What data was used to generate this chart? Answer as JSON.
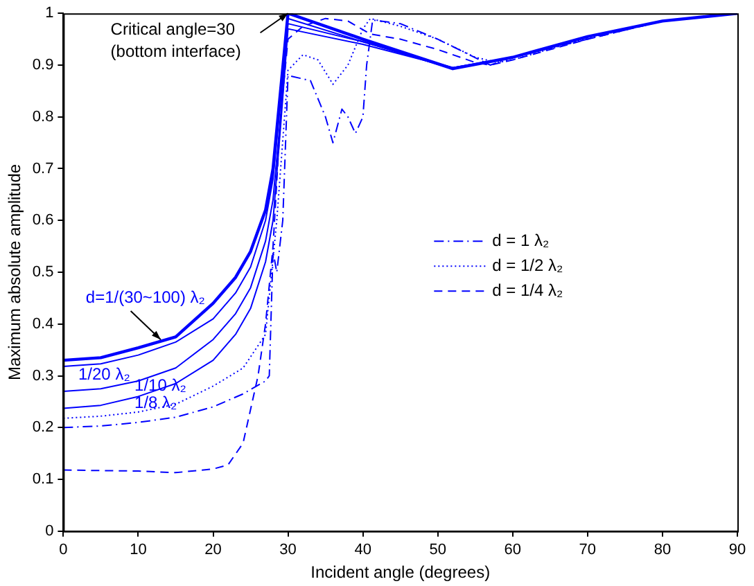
{
  "chart_data": {
    "type": "line",
    "xlabel": "Incident angle (degrees)",
    "ylabel": "Maximum absolute amplitude",
    "xlim": [
      0,
      90
    ],
    "xticks": [
      0,
      10,
      20,
      30,
      40,
      50,
      60,
      70,
      80,
      90
    ],
    "ylim": [
      0,
      1
    ],
    "yticks": [
      0,
      0.1,
      0.2,
      0.3,
      0.4,
      0.5,
      0.6,
      0.7,
      0.8,
      0.9,
      1
    ],
    "grid": false,
    "legend": "right",
    "marker": "none",
    "annotations": [
      {
        "text": "Critical angle=30\n(bottom interface)",
        "x": 30,
        "y": 1
      }
    ],
    "series": [
      {
        "name": "d=1/(30~100) λ₂",
        "color": "#0000ff",
        "line_style": "solid",
        "x": [
          0,
          5,
          10,
          15,
          20,
          23,
          25,
          27,
          28,
          29,
          30,
          40,
          52,
          60,
          70,
          80,
          90
        ],
        "values": [
          0.33,
          0.335,
          0.354,
          0.375,
          0.44,
          0.49,
          0.54,
          0.62,
          0.7,
          0.85,
          1.0,
          0.95,
          0.893,
          0.915,
          0.955,
          0.985,
          1.0
        ]
      },
      {
        "name": "1/20 λ₂",
        "color": "#0000ff",
        "line_style": "solid",
        "x": [
          0,
          5,
          10,
          15,
          20,
          23,
          25,
          27,
          28,
          29,
          30,
          40,
          52,
          60,
          70,
          80,
          90
        ],
        "values": [
          0.318,
          0.323,
          0.34,
          0.365,
          0.41,
          0.46,
          0.51,
          0.6,
          0.68,
          0.83,
          0.99,
          0.945,
          0.893,
          0.915,
          0.955,
          0.985,
          1.0
        ]
      },
      {
        "name": "1/10 λ₂",
        "color": "#0000ff",
        "line_style": "solid",
        "x": [
          0,
          5,
          10,
          15,
          20,
          23,
          25,
          27,
          28,
          29,
          30,
          40,
          52,
          60,
          70,
          80,
          90
        ],
        "values": [
          0.27,
          0.275,
          0.29,
          0.315,
          0.37,
          0.42,
          0.47,
          0.56,
          0.64,
          0.8,
          0.98,
          0.945,
          0.895,
          0.915,
          0.955,
          0.985,
          1.0
        ]
      },
      {
        "name": "1/8 λ₂",
        "color": "#0000ff",
        "line_style": "solid",
        "x": [
          0,
          5,
          10,
          15,
          20,
          23,
          25,
          27,
          28,
          29,
          30,
          40,
          52,
          60,
          70,
          80,
          90
        ],
        "values": [
          0.237,
          0.243,
          0.26,
          0.285,
          0.33,
          0.38,
          0.43,
          0.52,
          0.6,
          0.78,
          0.97,
          0.94,
          0.895,
          0.915,
          0.955,
          0.985,
          1.0
        ]
      },
      {
        "name": "d = 1 λ₂",
        "color": "#0000ff",
        "line_style": "dashdot",
        "x": [
          0,
          5,
          10,
          15,
          20,
          24,
          27,
          27.5,
          28,
          28.5,
          29.3,
          30,
          33,
          35,
          36,
          37.2,
          38,
          39,
          40,
          40.5,
          41.3,
          45,
          50,
          57,
          60,
          70,
          80,
          90
        ],
        "values": [
          0.2,
          0.203,
          0.21,
          0.22,
          0.24,
          0.265,
          0.29,
          0.3,
          0.54,
          0.5,
          0.6,
          0.88,
          0.87,
          0.8,
          0.75,
          0.815,
          0.8,
          0.768,
          0.8,
          0.9,
          0.987,
          0.98,
          0.95,
          0.9,
          0.915,
          0.95,
          0.985,
          1.0
        ]
      },
      {
        "name": "d = 1/2 λ₂",
        "color": "#0000ff",
        "line_style": "dotted",
        "x": [
          0,
          5,
          10,
          15,
          20,
          24,
          27,
          28.5,
          30,
          32,
          34,
          36,
          38,
          40,
          41,
          45,
          50,
          55,
          58,
          60,
          70,
          80,
          90
        ],
        "values": [
          0.218,
          0.222,
          0.23,
          0.245,
          0.28,
          0.315,
          0.38,
          0.6,
          0.89,
          0.92,
          0.91,
          0.863,
          0.9,
          0.97,
          0.99,
          0.975,
          0.95,
          0.915,
          0.905,
          0.91,
          0.952,
          0.985,
          1.0
        ]
      },
      {
        "name": "d = 1/4 λ₂",
        "color": "#0000ff",
        "line_style": "dashed",
        "x": [
          0,
          5,
          10,
          15,
          20,
          22,
          24,
          26,
          27,
          28,
          29,
          30,
          32,
          35,
          38,
          41,
          45,
          50,
          55,
          57,
          60,
          70,
          80,
          90
        ],
        "values": [
          0.118,
          0.117,
          0.116,
          0.113,
          0.12,
          0.128,
          0.17,
          0.3,
          0.4,
          0.55,
          0.8,
          0.95,
          0.975,
          0.99,
          0.985,
          0.96,
          0.95,
          0.93,
          0.905,
          0.9,
          0.91,
          0.95,
          0.985,
          1.0
        ]
      }
    ]
  }
}
